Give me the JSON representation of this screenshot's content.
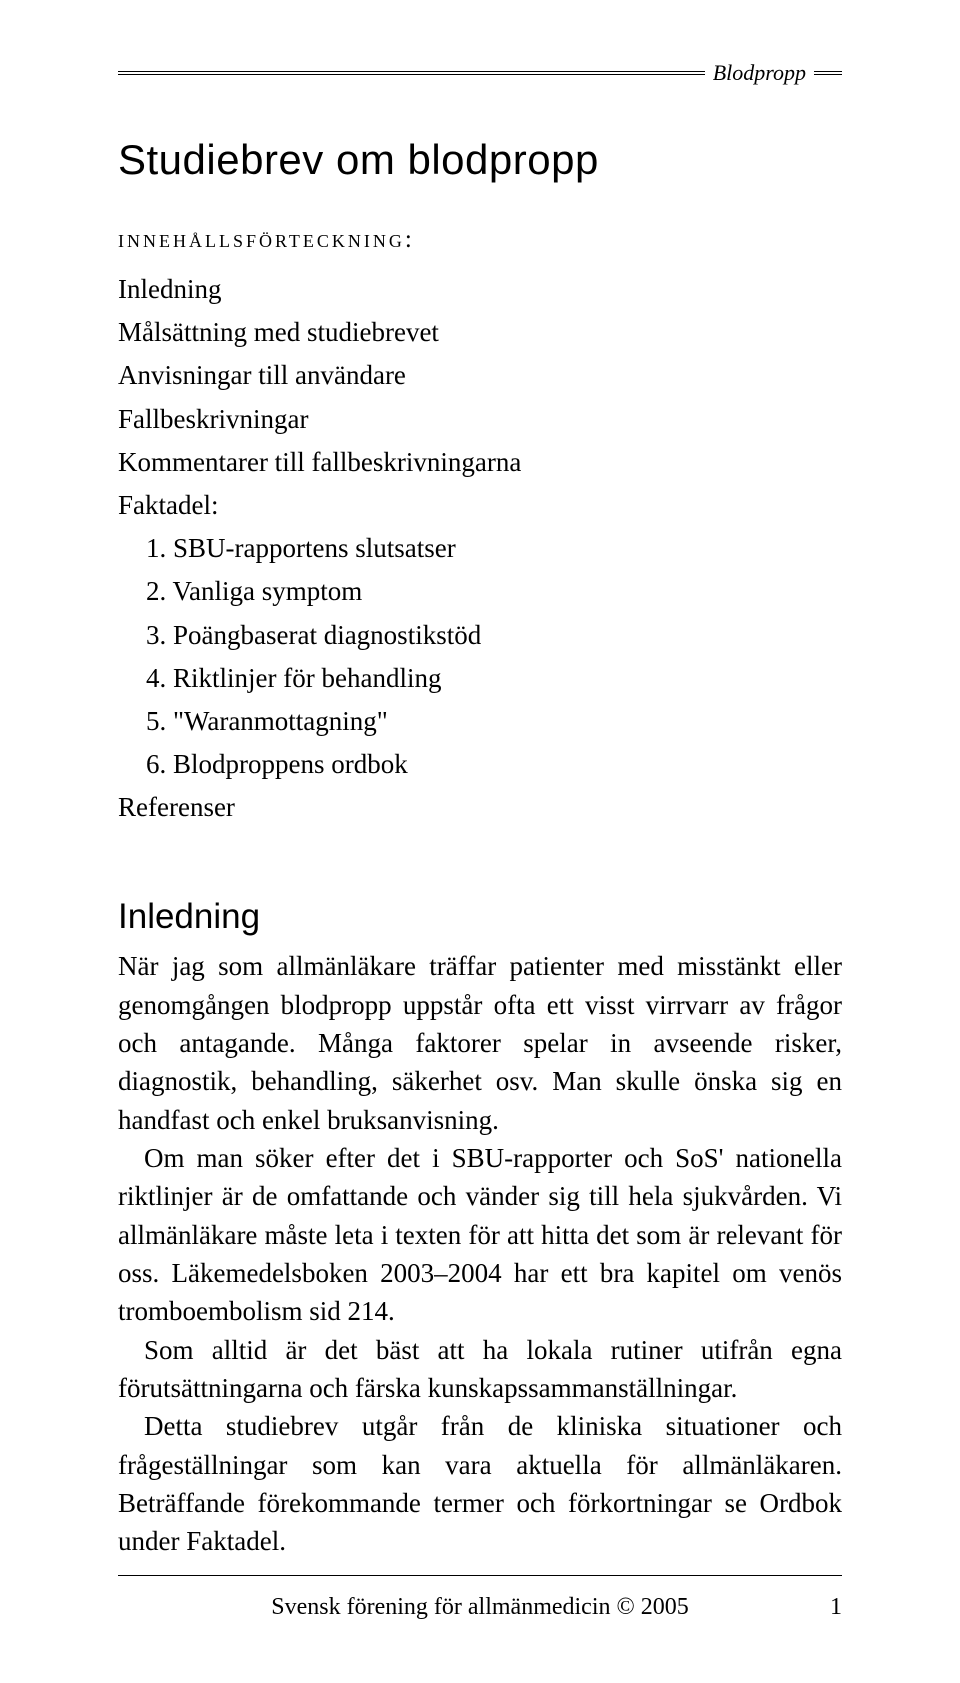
{
  "header": {
    "label": "Blodpropp"
  },
  "title": "Studiebrev om blodpropp",
  "toc": {
    "heading": "innehållsförteckning:",
    "items": [
      "Inledning",
      "Målsättning med studiebrevet",
      "Anvisningar till användare",
      "Fallbeskrivningar",
      "Kommentarer till fallbeskrivningarna",
      "Faktadel:"
    ],
    "numbered": [
      "1. SBU-rapportens slutsatser",
      "2. Vanliga symptom",
      "3. Poängbaserat diagnostikstöd",
      "4. Riktlinjer för behandling",
      "5. \"Waranmottagning\"",
      "6. Blodproppens ordbok"
    ],
    "last": "Referenser"
  },
  "section": {
    "heading": "Inledning",
    "paragraphs": [
      "När jag som allmänläkare träffar patienter med misstänkt eller genomgången blodpropp uppstår ofta ett visst virrvarr av frågor och antagande. Många faktorer spelar in avseende risker, diagnostik, behandling, säkerhet osv. Man skulle önska sig en handfast och enkel bruksanvisning.",
      "Om man söker efter det i SBU-rapporter och SoS' nationella riktlinjer är de omfattande och vänder sig till hela sjukvården. Vi allmänläkare måste leta i texten för att hitta det som är relevant för oss. Läkemedelsboken 2003–2004 har ett bra kapitel om venös tromboembolism sid 214.",
      "Som alltid är det bäst att ha lokala rutiner utifrån egna förutsättningarna och färska kunskapssammanställningar.",
      "Detta studiebrev utgår från de kliniska situationer och frågeställningar som kan vara aktuella för allmänläkaren. Beträffande förekommande termer och förkortningar se Ordbok under Faktadel."
    ]
  },
  "footer": {
    "text": "Svensk förening för allmänmedicin © 2005",
    "page": "1"
  }
}
